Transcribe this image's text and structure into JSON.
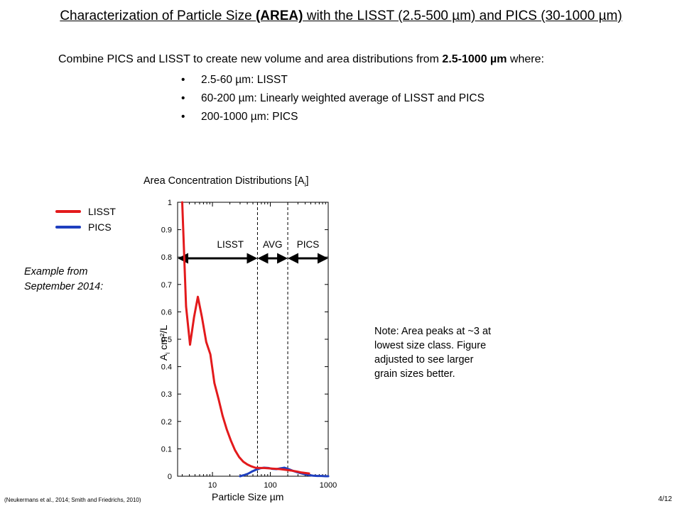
{
  "slide": {
    "title_pre": "Characterization of Particle Size ",
    "title_bold": "(AREA)",
    "title_post": " with the LISST (2.5-500 µm) and PICS (30-1000 µm)",
    "intro_pre": "Combine PICS and LISST to create new volume and area distributions  from ",
    "intro_bold": "2.5-1000 µm",
    "intro_post": " where:",
    "bullets": [
      "2.5-60 µm: LISST",
      "60-200 µm: Linearly weighted average of LISST and PICS",
      "200-1000 µm: PICS"
    ],
    "example": "Example from\nSeptember 2014:",
    "note": "Note: Area peaks at ~3 at\nlowest size class. Figure\nadjusted to see larger\ngrain sizes better.",
    "footer_citation": "(Neukermans et al., 2014; Smith and Friedrichs, 2010)",
    "page_number": "4/12"
  },
  "chart_data": {
    "type": "line",
    "title": "Area Concentration Distributions [A",
    "title_sub": "i",
    "title_close": "]",
    "xlabel": "Particle Size µm",
    "ylabel_main": "A",
    "ylabel_sub": "i",
    "ylabel_rest": " cm²/L",
    "x_scale": "log",
    "xlim": [
      2.5,
      1000
    ],
    "ylim": [
      0,
      1
    ],
    "x_ticks": [
      10,
      100,
      1000
    ],
    "x_tick_labels": [
      "10",
      "100",
      "1000"
    ],
    "y_ticks": [
      0,
      0.1,
      0.2,
      0.3,
      0.4,
      0.5,
      0.6,
      0.7,
      0.8,
      0.9,
      1
    ],
    "y_tick_labels": [
      "0",
      "0.1",
      "0.2",
      "0.3",
      "0.4",
      "0.5",
      "0.6",
      "0.7",
      "0.8",
      "0.9",
      "1"
    ],
    "dashed_vlines": [
      60,
      200
    ],
    "region_labels": [
      "LISST",
      "AVG",
      "PICS"
    ],
    "region_ranges": [
      [
        2.5,
        60
      ],
      [
        60,
        200
      ],
      [
        200,
        1000
      ]
    ],
    "legend_placement": "left",
    "series": [
      {
        "name": "LISST",
        "color": "#e31a1c",
        "x": [
          3.0,
          3.5,
          4.1,
          4.8,
          5.6,
          6.6,
          7.8,
          9.2,
          10.8,
          12.8,
          15,
          17.7,
          20.8,
          24.5,
          28.9,
          34,
          40,
          47,
          55,
          65,
          77,
          90,
          107,
          126,
          148,
          175,
          206,
          243,
          286,
          337,
          397,
          467
        ],
        "y": [
          1.0,
          0.62,
          0.48,
          0.58,
          0.655,
          0.58,
          0.49,
          0.445,
          0.34,
          0.28,
          0.22,
          0.17,
          0.13,
          0.095,
          0.07,
          0.053,
          0.043,
          0.036,
          0.031,
          0.03,
          0.03,
          0.029,
          0.028,
          0.027,
          0.026,
          0.024,
          0.022,
          0.02,
          0.017,
          0.014,
          0.012,
          0.01
        ]
      },
      {
        "name": "PICS",
        "color": "#1f3fbf",
        "x": [
          30,
          35,
          41,
          48,
          57,
          67,
          78,
          92,
          108,
          127,
          150,
          176,
          207,
          244,
          287,
          338,
          398,
          468,
          551,
          649,
          764,
          900,
          1000
        ],
        "y": [
          0.0,
          0.004,
          0.009,
          0.017,
          0.024,
          0.029,
          0.031,
          0.03,
          0.027,
          0.026,
          0.029,
          0.031,
          0.026,
          0.02,
          0.015,
          0.011,
          0.007,
          0.004,
          0.002,
          0.001,
          0.001,
          0.0,
          0.0
        ]
      }
    ]
  }
}
